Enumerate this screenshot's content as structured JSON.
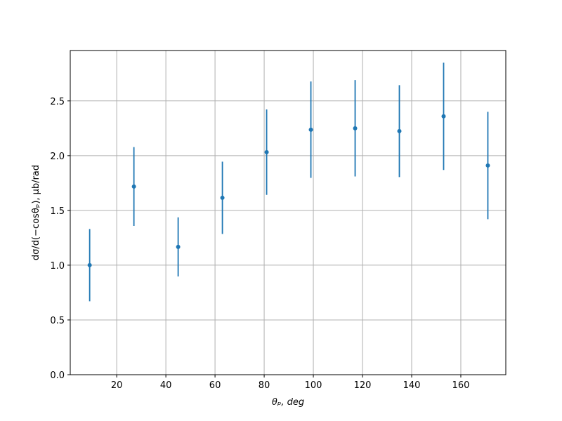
{
  "chart_data": {
    "type": "errorbar",
    "x_label": "θₚ, deg",
    "y_label": "dσ/d(−cosθₚ), μb/rad",
    "x": [
      9,
      27,
      45,
      63,
      81,
      99,
      117,
      135,
      153,
      171
    ],
    "values": [
      1.0,
      1.718,
      1.167,
      1.615,
      2.032,
      2.237,
      2.25,
      2.224,
      2.359,
      1.91
    ],
    "errors": [
      0.33,
      0.36,
      0.27,
      0.33,
      0.39,
      0.44,
      0.44,
      0.42,
      0.49,
      0.49
    ],
    "color": "#1f77b4",
    "xlim": [
      1.1,
      178.3
    ],
    "ylim": [
      0,
      2.96
    ],
    "xticks": [
      20,
      40,
      60,
      80,
      100,
      120,
      140,
      160
    ],
    "yticks": [
      {
        "value": 0,
        "label": "0.0"
      },
      {
        "value": 0.5,
        "label": "0.5"
      },
      {
        "value": 1,
        "label": "1.0"
      },
      {
        "value": 1.5,
        "label": "1.5"
      },
      {
        "value": 2,
        "label": "2.0"
      },
      {
        "value": 2.5,
        "label": "2.5"
      }
    ],
    "grid": true
  }
}
